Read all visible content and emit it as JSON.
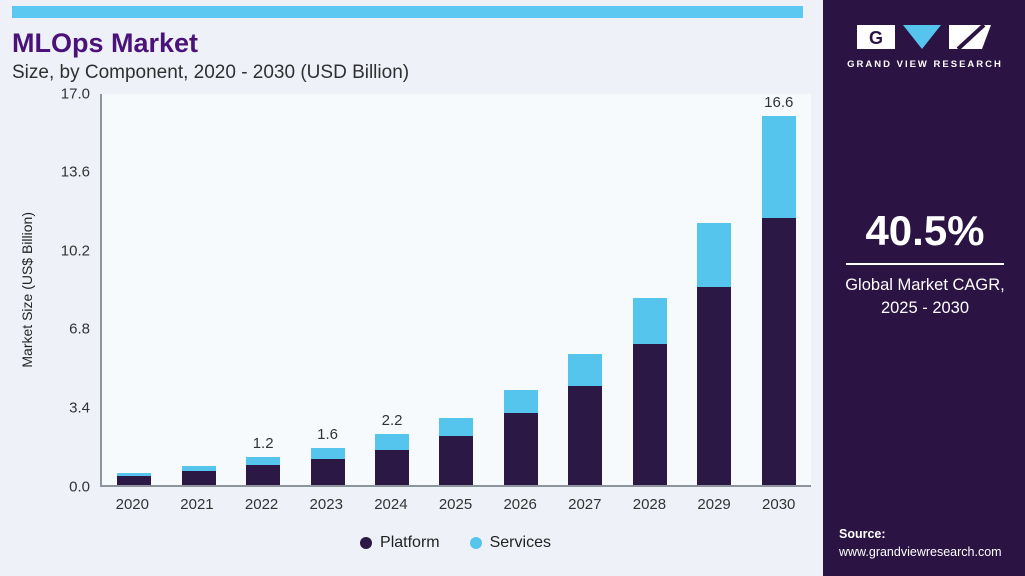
{
  "header": {
    "title": "MLOps Market",
    "subtitle": "Size, by Component, 2020 - 2030 (USD Billion)"
  },
  "chart_data": {
    "type": "bar",
    "stacked": true,
    "title": "MLOps Market",
    "subtitle": "Size, by Component, 2020 - 2030 (USD Billion)",
    "ylabel": "Market Size (US$ Billion)",
    "xlabel": "",
    "ylim": [
      0,
      17.0
    ],
    "yticks": [
      "17.0",
      "13.6",
      "10.2",
      "6.8",
      "3.4",
      "0.0"
    ],
    "grid": false,
    "legend_position": "bottom",
    "categories": [
      "2020",
      "2021",
      "2022",
      "2023",
      "2024",
      "2025",
      "2026",
      "2027",
      "2028",
      "2029",
      "2030"
    ],
    "series": [
      {
        "name": "Platform",
        "color": "#2c1844",
        "values": [
          0.4,
          0.6,
          0.85,
          1.1,
          1.5,
          2.1,
          3.1,
          4.3,
          6.1,
          8.6,
          12.0
        ]
      },
      {
        "name": "Services",
        "color": "#56c5ee",
        "values": [
          0.1,
          0.2,
          0.35,
          0.5,
          0.7,
          0.8,
          1.0,
          1.4,
          2.0,
          2.8,
          4.6
        ]
      }
    ],
    "bar_labels": [
      "",
      "",
      "1.2",
      "1.6",
      "2.2",
      "",
      "",
      "",
      "",
      "",
      "16.6"
    ],
    "legend": [
      "Platform",
      "Services"
    ]
  },
  "sidebar": {
    "brand": "GRAND VIEW RESEARCH",
    "stat_value": "40.5%",
    "stat_caption_line1": "Global Market CAGR,",
    "stat_caption_line2": "2025 - 2030",
    "source_label": "Source:",
    "source_url": "www.grandviewresearch.com"
  },
  "colors": {
    "platform": "#2c1844",
    "services": "#56c5ee",
    "accent_strip": "#5ac8f0",
    "sidebar_bg": "#2b1344",
    "title": "#4b1279",
    "panel_bg": "#eef2f8"
  },
  "icons": {
    "logo": "grand-view-research-logo"
  }
}
